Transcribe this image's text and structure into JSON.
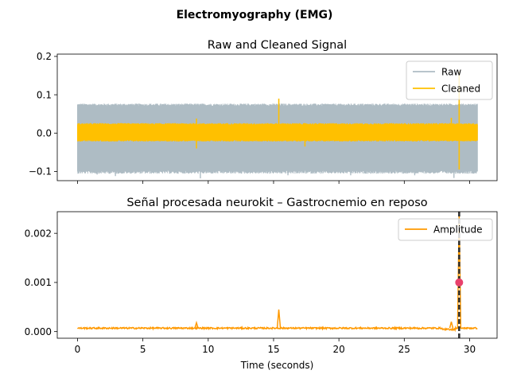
{
  "figure": {
    "title": "Electromyography (EMG)"
  },
  "chart_data": [
    {
      "type": "line",
      "title": "Raw and Cleaned Signal",
      "xlabel": "",
      "ylabel": "",
      "xlim": [
        -1.55,
        32.1
      ],
      "ylim": [
        -0.124,
        0.206
      ],
      "xticks": [
        0,
        5,
        10,
        15,
        20,
        25,
        30
      ],
      "xtick_labels_visible": false,
      "yticks": [
        -0.1,
        0.0,
        0.1,
        0.2
      ],
      "ytick_labels": [
        "−0.1",
        "0.0",
        "0.1",
        "0.2"
      ],
      "grid": false,
      "legend_position": "top-right",
      "duration": 30.6,
      "series": [
        {
          "name": "Raw",
          "color": "#aebcc4",
          "baseline_band": [
            -0.098,
            0.074
          ],
          "dips": [
            {
              "x": 1.5,
              "y": -0.108
            },
            {
              "x": 2.9,
              "y": -0.112
            },
            {
              "x": 9.4,
              "y": -0.118
            },
            {
              "x": 16.1,
              "y": -0.11
            },
            {
              "x": 20.9,
              "y": -0.11
            },
            {
              "x": 25.8,
              "y": -0.11
            },
            {
              "x": 28.8,
              "y": -0.117
            }
          ]
        },
        {
          "name": "Cleaned",
          "color": "#ffc000",
          "baseline_band": [
            -0.018,
            0.024
          ],
          "spikes": [
            {
              "x": 9.1,
              "y": 0.038
            },
            {
              "x": 9.1,
              "y": -0.04
            },
            {
              "x": 15.4,
              "y": 0.09
            },
            {
              "x": 15.4,
              "y": -0.02
            },
            {
              "x": 17.4,
              "y": -0.035
            },
            {
              "x": 28.6,
              "y": 0.04
            },
            {
              "x": 29.2,
              "y": 0.16
            },
            {
              "x": 29.2,
              "y": -0.095
            }
          ]
        }
      ]
    },
    {
      "type": "line",
      "title": "Señal procesada neurokit – Gastrocnemio en reposo",
      "xlabel": "Time (seconds)",
      "ylabel": "",
      "xlim": [
        -1.55,
        32.1
      ],
      "ylim": [
        -0.000135,
        0.00244
      ],
      "xticks": [
        0,
        5,
        10,
        15,
        20,
        25,
        30
      ],
      "xtick_labels": [
        "0",
        "5",
        "10",
        "15",
        "20",
        "25",
        "30"
      ],
      "yticks": [
        0.0,
        0.001,
        0.002
      ],
      "ytick_labels": [
        "0.000",
        "0.001",
        "0.002"
      ],
      "grid": false,
      "legend_position": "top-right",
      "duration": 30.6,
      "series": [
        {
          "name": "Amplitude",
          "color": "#ff9900",
          "baseline": 7e-05,
          "peaks": [
            {
              "x": 9.1,
              "y": 0.00018
            },
            {
              "x": 15.4,
              "y": 0.00045
            },
            {
              "x": 28.6,
              "y": 0.0002
            },
            {
              "x": 29.2,
              "y": 0.0024
            }
          ]
        }
      ],
      "onset_marker": {
        "x": 29.2,
        "color": "#333333",
        "style": "dashed"
      },
      "activity_point": {
        "x": 29.2,
        "y": 0.001,
        "color": "#e8416c"
      }
    }
  ]
}
